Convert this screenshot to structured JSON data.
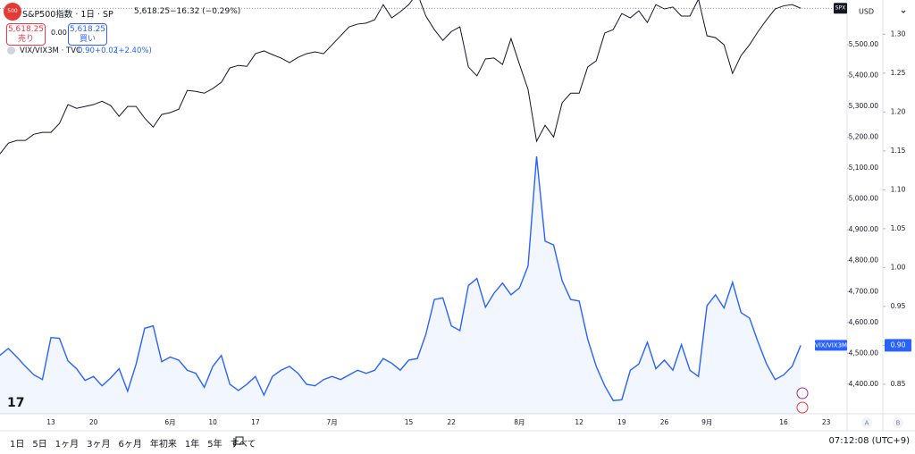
{
  "header": {
    "logo": "500",
    "symbol_title": "S&P500指数 · 1日 · SP",
    "last_price": "5,618.25",
    "change": "−16.32 (−0.29%)",
    "sell_price": "5,618.25",
    "sell_label": "売り",
    "spread": "0.00",
    "buy_price": "5,618.25",
    "buy_label": "買い",
    "overlay_title": "VIX/VIX3M · TVC",
    "overlay_last": "0.90",
    "overlay_change": "+0.02",
    "overlay_change_pct": "(+2.40%)",
    "currency": "USD",
    "overlay_badge_value": "0.90",
    "axis_a": "A",
    "axis_b": "B"
  },
  "toolbar": {
    "ranges": [
      "1日",
      "5日",
      "1ヶ月",
      "3ヶ月",
      "6ヶ月",
      "年初来",
      "1年",
      "5年",
      "すべて"
    ],
    "clock": "07:12:08 (UTC+9)"
  },
  "chart_data": {
    "type": "line",
    "categories": [
      null,
      null,
      null,
      null,
      null,
      null,
      "13",
      null,
      null,
      null,
      null,
      "20",
      null,
      null,
      null,
      null,
      null,
      null,
      null,
      null,
      "6月",
      null,
      null,
      null,
      null,
      "10",
      null,
      null,
      null,
      null,
      "17",
      null,
      null,
      null,
      null,
      null,
      null,
      null,
      null,
      "7月",
      null,
      null,
      null,
      null,
      null,
      null,
      null,
      null,
      "15",
      null,
      null,
      null,
      null,
      "22",
      null,
      null,
      null,
      null,
      null,
      null,
      null,
      "8月",
      null,
      null,
      null,
      null,
      null,
      null,
      "12",
      null,
      null,
      null,
      null,
      "19",
      null,
      null,
      null,
      null,
      "26",
      null,
      null,
      null,
      null,
      "9月",
      null,
      null,
      null,
      null,
      null,
      null,
      null,
      null,
      "16",
      null,
      null,
      null,
      null,
      "23",
      null,
      null
    ],
    "series": [
      {
        "name": "SPX",
        "color": "#131722",
        "axis": "y",
        "values": [
          5146,
          5181,
          5190,
          5190,
          5210,
          5216,
          5216,
          5245,
          5306,
          5294,
          5300,
          5306,
          5317,
          5303,
          5268,
          5300,
          5300,
          5262,
          5233,
          5274,
          5280,
          5291,
          5352,
          5349,
          5343,
          5358,
          5378,
          5425,
          5433,
          5430,
          5471,
          5480,
          5468,
          5457,
          5442,
          5459,
          5471,
          5477,
          5471,
          5500,
          5529,
          5558,
          5567,
          5570,
          5581,
          5630,
          5587,
          5607,
          5630,
          5667,
          5593,
          5549,
          5514,
          5543,
          5558,
          5428,
          5399,
          5454,
          5457,
          5436,
          5520,
          5436,
          5355,
          5187,
          5239,
          5201,
          5312,
          5343,
          5343,
          5428,
          5448,
          5538,
          5549,
          5601,
          5587,
          5610,
          5572,
          5630,
          5616,
          5622,
          5593,
          5593,
          5648,
          5529,
          5523,
          5500,
          5407,
          5465,
          5500,
          5543,
          5581,
          5616,
          5626,
          5630,
          5618.25,
          null,
          null,
          null,
          null,
          null
        ]
      },
      {
        "name": "VIX/VIX3M",
        "color": "#2962ff",
        "axis": "y2",
        "values": [
          0.887,
          0.896,
          0.885,
          0.873,
          0.862,
          0.856,
          0.91,
          0.909,
          0.88,
          0.87,
          0.855,
          0.86,
          0.848,
          0.858,
          0.87,
          0.841,
          0.876,
          0.922,
          0.925,
          0.879,
          0.885,
          0.881,
          0.868,
          0.864,
          0.846,
          0.873,
          0.887,
          0.85,
          0.842,
          0.85,
          0.86,
          0.836,
          0.86,
          0.868,
          0.873,
          0.864,
          0.85,
          0.848,
          0.856,
          0.86,
          0.856,
          0.862,
          0.868,
          0.864,
          0.868,
          0.883,
          0.877,
          0.868,
          0.881,
          0.883,
          0.914,
          0.959,
          0.961,
          0.925,
          0.919,
          0.977,
          0.986,
          0.949,
          0.967,
          0.98,
          0.965,
          0.974,
          1.002,
          1.143,
          1.034,
          1.029,
          0.983,
          0.959,
          0.957,
          0.908,
          0.873,
          0.848,
          0.829,
          0.83,
          0.868,
          0.876,
          0.904,
          0.87,
          0.881,
          0.868,
          0.901,
          0.868,
          0.86,
          0.951,
          0.965,
          0.948,
          0.981,
          0.942,
          0.935,
          0.904,
          0.876,
          0.856,
          0.862,
          0.873,
          0.9,
          null,
          null,
          null,
          null,
          null
        ]
      }
    ],
    "ylim": [
      4304,
      5645
    ],
    "yticks": [
      {
        "value": 4400,
        "label": "4,400.00"
      },
      {
        "value": 4500,
        "label": "4,500.00"
      },
      {
        "value": 4600,
        "label": "4,600.00"
      },
      {
        "value": 4700,
        "label": "4,700.00"
      },
      {
        "value": 4800,
        "label": "4,800.00"
      },
      {
        "value": 4900,
        "label": "4,900.00"
      },
      {
        "value": 5000,
        "label": "5,000.00"
      },
      {
        "value": 5100,
        "label": "5,100.00"
      },
      {
        "value": 5200,
        "label": "5,200.00"
      },
      {
        "value": 5300,
        "label": "5,300.00"
      },
      {
        "value": 5400,
        "label": "5,400.00"
      },
      {
        "value": 5500,
        "label": "5,500.00"
      }
    ],
    "y2lim": [
      0.812,
      1.344
    ],
    "y2ticks": [
      0.85,
      {
        "value": 0.9,
        "label": "0.90"
      },
      0.95,
      {
        "value": 1.0,
        "label": "1.00"
      },
      1.05,
      {
        "value": 1.1,
        "label": "1.10"
      },
      1.15,
      {
        "value": 1.2,
        "label": "1.20"
      },
      1.25,
      {
        "value": 1.3,
        "label": "1.30"
      }
    ],
    "grid": false
  }
}
